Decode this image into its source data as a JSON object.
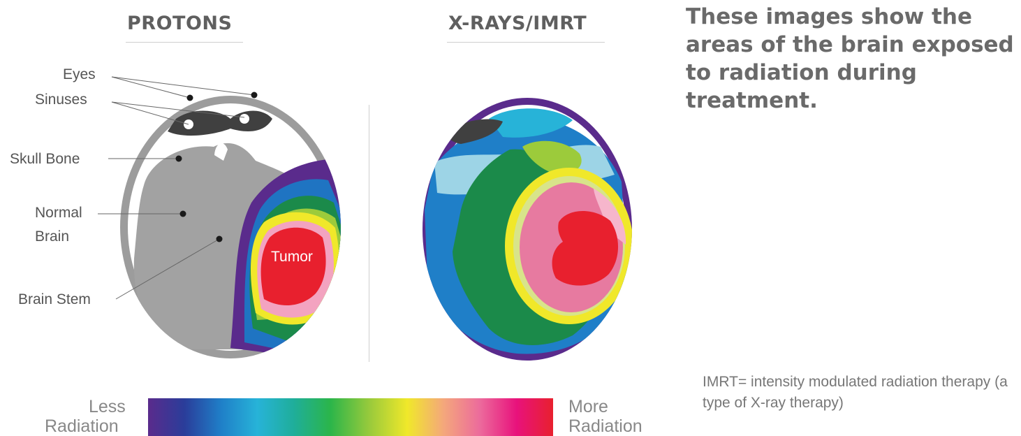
{
  "headers": {
    "protons": "PROTONS",
    "xrays": "X-RAYS/IMRT"
  },
  "labels": {
    "eyes": "Eyes",
    "sinuses": "Sinuses",
    "skull_bone": "Skull Bone",
    "normal_brain_line1": "Normal",
    "normal_brain_line2": "Brain",
    "brain_stem": "Brain Stem",
    "tumor": "Tumor"
  },
  "description": "These images show the areas of the brain exposed to radiation during treatment.",
  "note": "IMRT= intensity modulated radiation therapy (a type of X-ray therapy)",
  "scale": {
    "less_line1": "Less",
    "less_line2": "Radiation",
    "more_line1": "More",
    "more_line2": "Radiation",
    "colors": [
      "#5a2b8c",
      "#2a3d9a",
      "#1f7fc8",
      "#27b3d8",
      "#1fae9a",
      "#2bb54a",
      "#9ccb3b",
      "#f0e82a",
      "#f4a77c",
      "#ec6a9c",
      "#e8127c",
      "#e8202e"
    ]
  }
}
